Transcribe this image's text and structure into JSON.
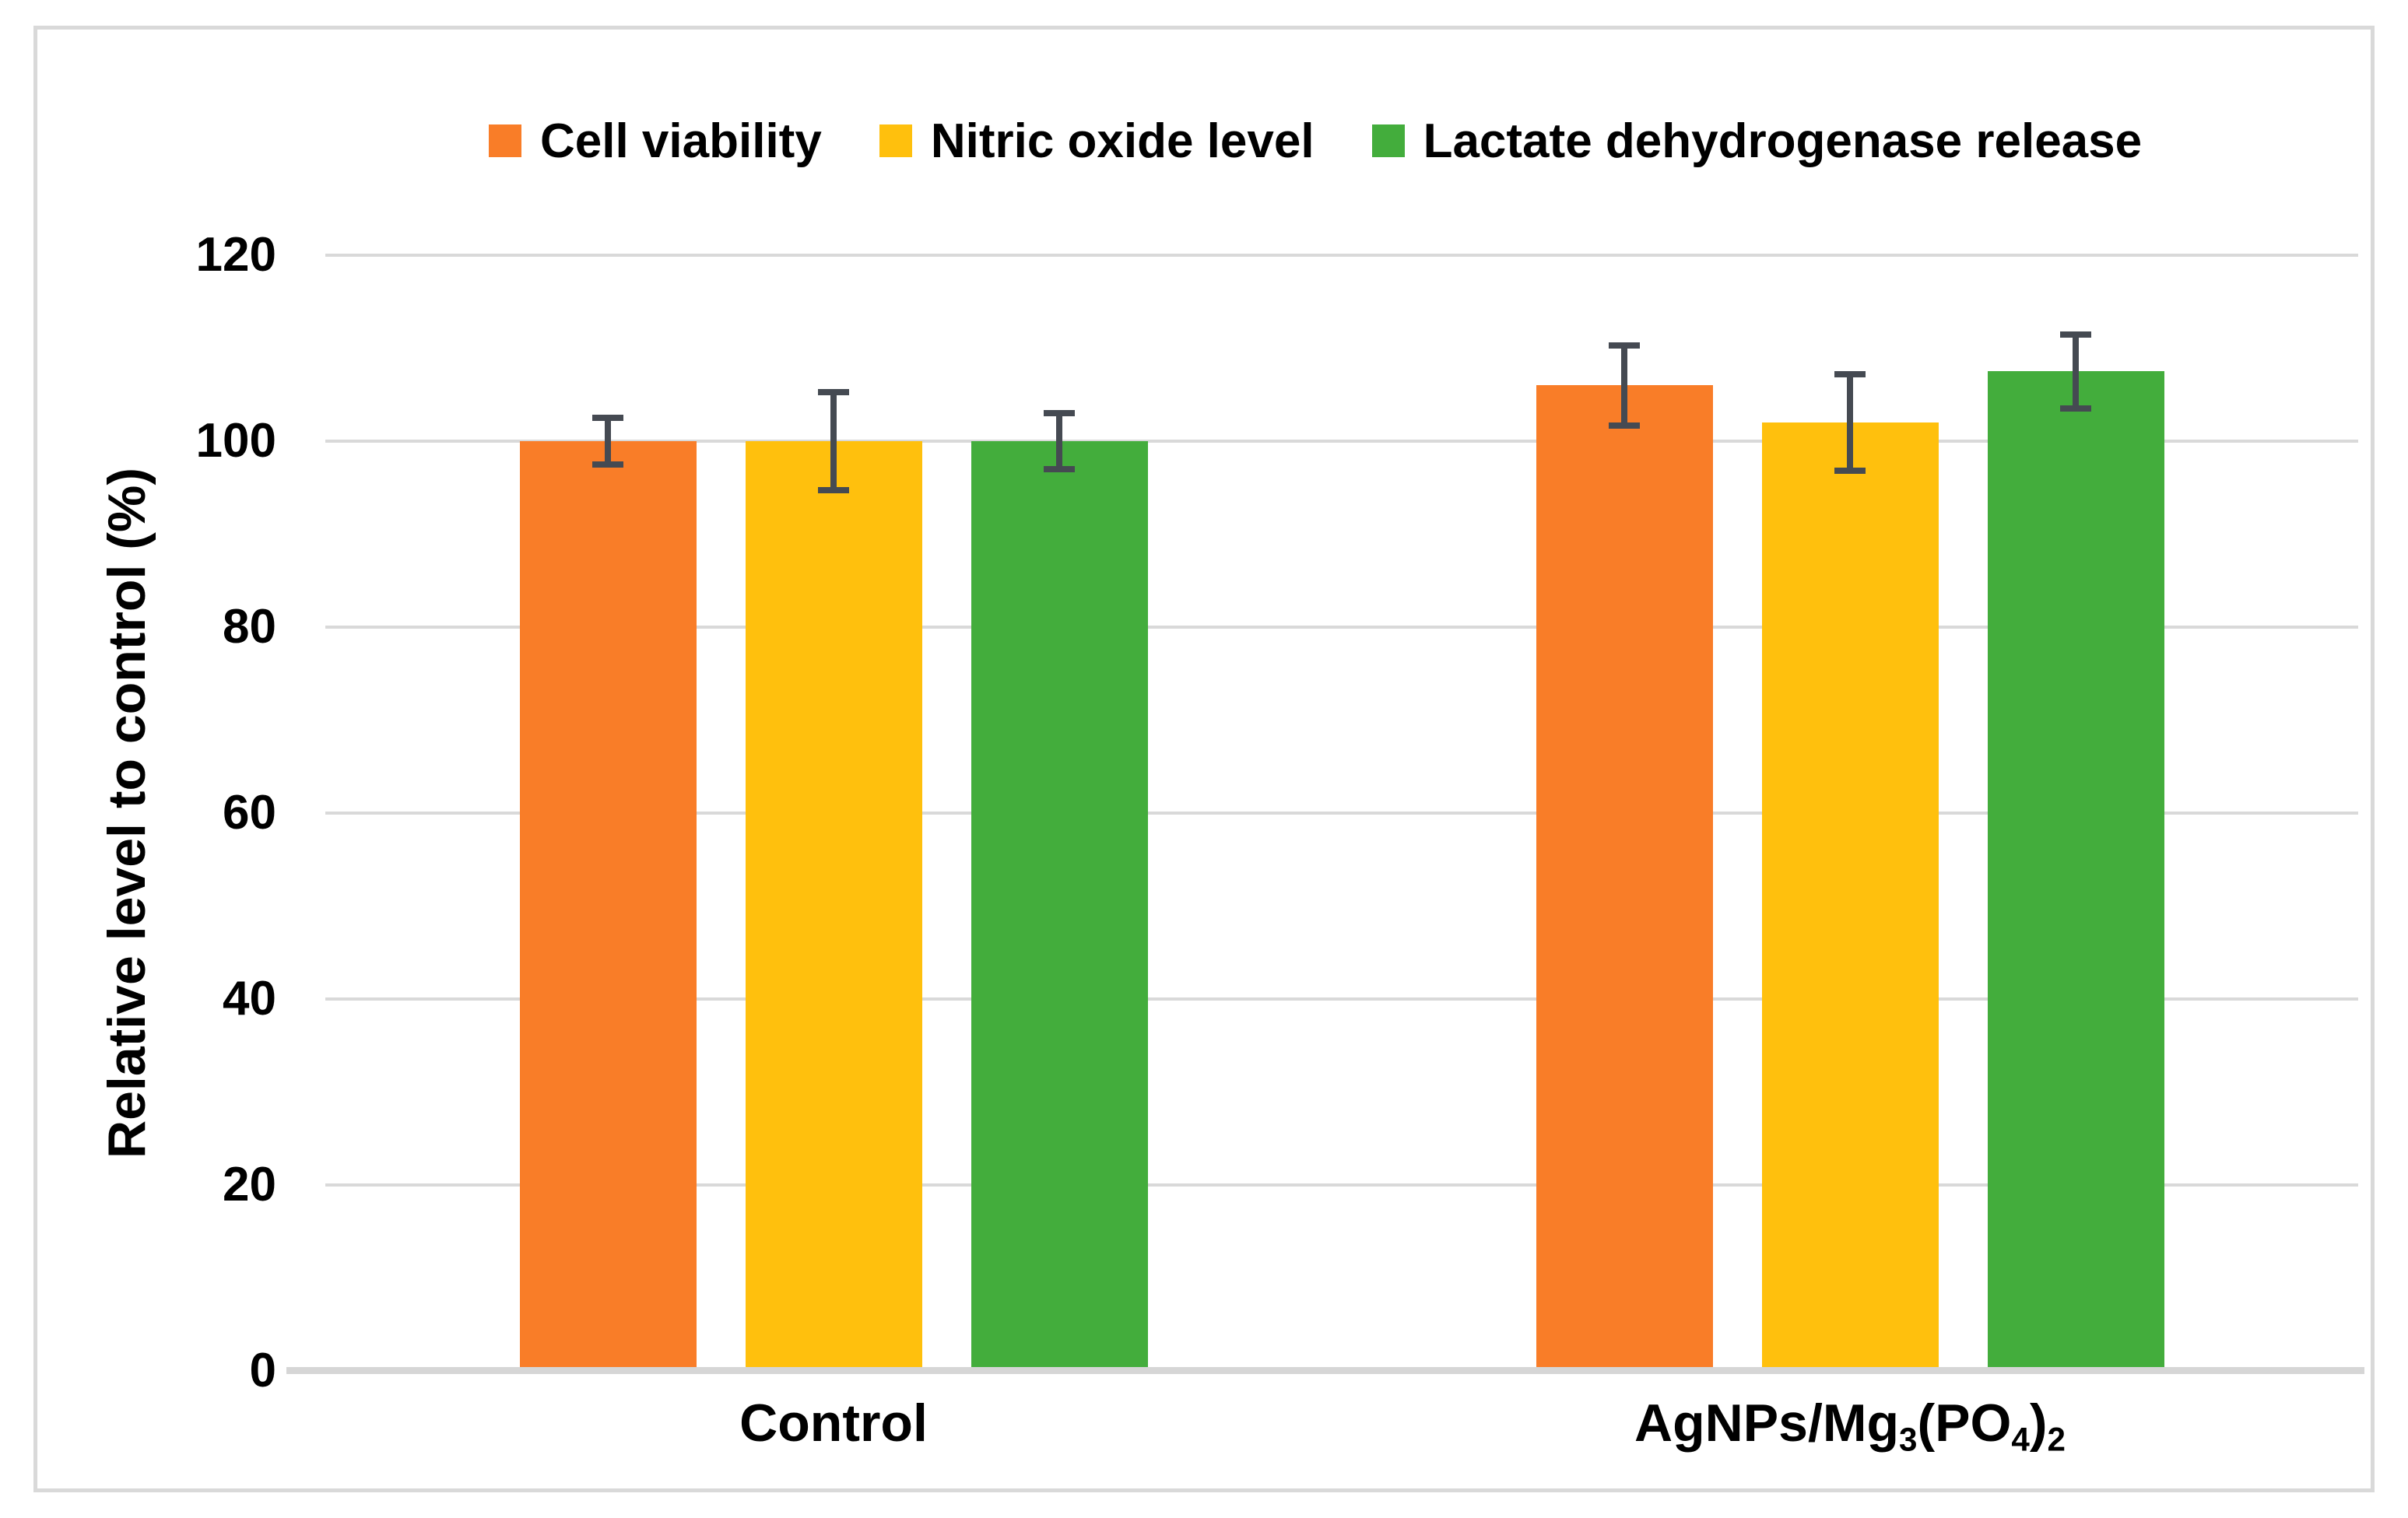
{
  "chart_data": {
    "type": "bar",
    "title": "",
    "xlabel": "",
    "ylabel": "Relative level to control (%)",
    "ylim": [
      0,
      120
    ],
    "yticks": [
      0,
      20,
      40,
      60,
      80,
      100,
      120
    ],
    "grid": true,
    "legend_position": "top",
    "categories": [
      "Control",
      "AgNPs/Mg3(PO4)2"
    ],
    "categories_rich": [
      [
        {
          "t": "Control",
          "sub": false
        }
      ],
      [
        {
          "t": "AgNPs/Mg",
          "sub": false
        },
        {
          "t": "3",
          "sub": true
        },
        {
          "t": "(PO",
          "sub": false
        },
        {
          "t": "4",
          "sub": true
        },
        {
          "t": ")",
          "sub": false
        },
        {
          "t": "2",
          "sub": true
        }
      ]
    ],
    "series": [
      {
        "name": "Cell viability",
        "color": "#F97D28",
        "values": [
          100,
          106
        ],
        "errors": [
          2.5,
          4.3
        ]
      },
      {
        "name": "Nitric oxide level",
        "color": "#FFC00D",
        "values": [
          100,
          102
        ],
        "errors": [
          5.3,
          5.2
        ]
      },
      {
        "name": "Lactate dehydrogenase release",
        "color": "#43AD3C",
        "values": [
          100,
          107.5
        ],
        "errors": [
          3.0,
          4.0
        ]
      }
    ],
    "colors": {
      "gridline": "#d9d9d9",
      "axis_line": "#d6d6d6",
      "error_bar": "#454a52",
      "text": "#000000",
      "frame_border": "#d9d9d9"
    }
  }
}
